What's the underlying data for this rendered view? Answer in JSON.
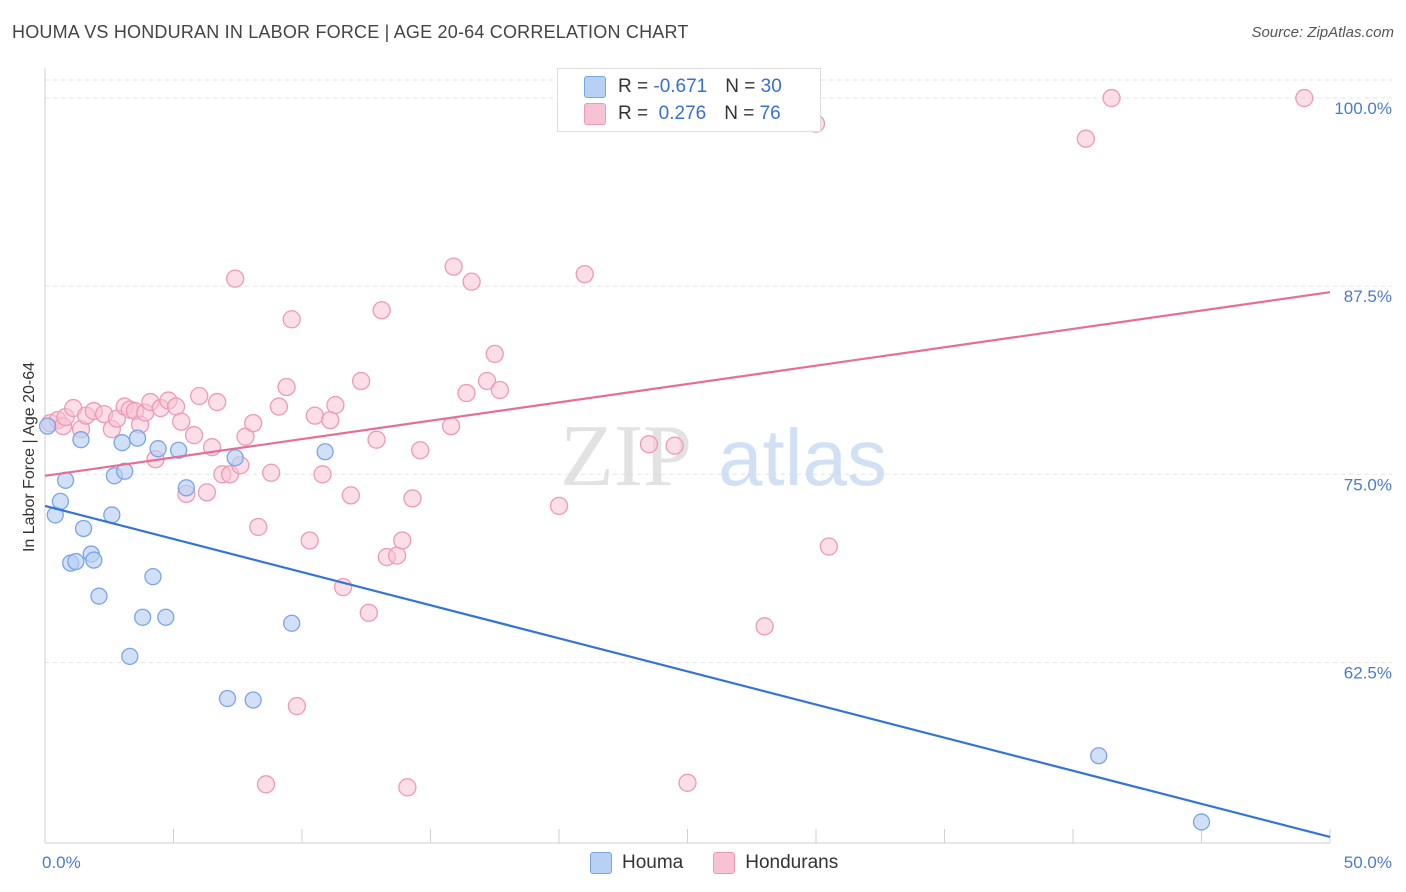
{
  "title": "HOUMA VS HONDURAN IN LABOR FORCE | AGE 20-64 CORRELATION CHART",
  "source": "Source: ZipAtlas.com",
  "watermark": {
    "zip": "ZIP",
    "atlas": "atlas"
  },
  "colors": {
    "houma_fill": "#b8d0f3",
    "houma_stroke": "#7aa5e4",
    "houma_line": "#3474d4",
    "honduran_fill": "#f7c3d4",
    "honduran_stroke": "#ee9ab6",
    "honduran_line": "#e46f96",
    "grid": "#e3e3e3",
    "axis_text": "#4a7bd0"
  },
  "legend": {
    "houma": {
      "r_label": "R = ",
      "r_value": "-0.671",
      "n_label": "N = ",
      "n_value": "30"
    },
    "honduran": {
      "r_label": "R = ",
      "r_value": " 0.276",
      "n_label": "N = ",
      "n_value": "76"
    }
  },
  "bottom_legend": {
    "houma": "Houma",
    "honduran": "Hondurans"
  },
  "chart_data": {
    "type": "scatter",
    "title": "HOUMA VS HONDURAN IN LABOR FORCE | AGE 20-64 CORRELATION CHART",
    "xlabel": "",
    "ylabel": "In Labor Force | Age 20-64",
    "xlim": [
      0,
      50
    ],
    "ylim": [
      50.5,
      101.2
    ],
    "x_tick_labels": [
      "0.0%",
      "50.0%"
    ],
    "y_ticks": [
      62.5,
      75.0,
      87.5,
      100.0
    ],
    "y_tick_labels": [
      "62.5%",
      "75.0%",
      "87.5%",
      "100.0%"
    ],
    "series": [
      {
        "name": "Houma",
        "points": [
          [
            0.1,
            78.2
          ],
          [
            0.4,
            72.3
          ],
          [
            0.6,
            73.2
          ],
          [
            0.8,
            74.6
          ],
          [
            1.0,
            69.1
          ],
          [
            1.2,
            69.2
          ],
          [
            1.4,
            77.3
          ],
          [
            1.5,
            71.4
          ],
          [
            1.8,
            69.7
          ],
          [
            1.9,
            69.3
          ],
          [
            2.1,
            66.9
          ],
          [
            2.6,
            72.3
          ],
          [
            2.7,
            74.9
          ],
          [
            3.0,
            77.1
          ],
          [
            3.1,
            75.2
          ],
          [
            3.3,
            62.9
          ],
          [
            3.6,
            77.4
          ],
          [
            3.8,
            65.5
          ],
          [
            4.2,
            68.2
          ],
          [
            4.4,
            76.7
          ],
          [
            4.7,
            65.5
          ],
          [
            5.2,
            76.6
          ],
          [
            5.5,
            74.1
          ],
          [
            7.1,
            60.1
          ],
          [
            7.4,
            76.1
          ],
          [
            8.1,
            60.0
          ],
          [
            9.6,
            65.1
          ],
          [
            10.9,
            76.5
          ],
          [
            41.0,
            56.3
          ],
          [
            45.0,
            51.9
          ]
        ],
        "trend": {
          "x": [
            0,
            50
          ],
          "y": [
            72.9,
            50.9
          ]
        }
      },
      {
        "name": "Hondurans",
        "points": [
          [
            0.2,
            78.4
          ],
          [
            0.5,
            78.6
          ],
          [
            0.7,
            78.2
          ],
          [
            0.8,
            78.8
          ],
          [
            1.1,
            79.4
          ],
          [
            1.4,
            78.0
          ],
          [
            1.6,
            78.9
          ],
          [
            1.9,
            79.2
          ],
          [
            2.3,
            79.0
          ],
          [
            2.6,
            78.0
          ],
          [
            2.8,
            78.7
          ],
          [
            3.1,
            79.5
          ],
          [
            3.3,
            79.3
          ],
          [
            3.5,
            79.2
          ],
          [
            3.7,
            78.3
          ],
          [
            3.9,
            79.1
          ],
          [
            4.1,
            79.8
          ],
          [
            4.3,
            76.0
          ],
          [
            4.5,
            79.4
          ],
          [
            4.8,
            79.9
          ],
          [
            5.1,
            79.5
          ],
          [
            5.3,
            78.5
          ],
          [
            5.5,
            73.7
          ],
          [
            5.8,
            77.6
          ],
          [
            6.0,
            80.2
          ],
          [
            6.3,
            73.8
          ],
          [
            6.5,
            76.8
          ],
          [
            6.7,
            79.8
          ],
          [
            6.9,
            75.0
          ],
          [
            7.2,
            75.0
          ],
          [
            7.4,
            88.0
          ],
          [
            7.6,
            75.6
          ],
          [
            7.8,
            77.5
          ],
          [
            8.1,
            78.4
          ],
          [
            8.3,
            71.5
          ],
          [
            8.6,
            54.4
          ],
          [
            8.8,
            75.1
          ],
          [
            9.1,
            79.5
          ],
          [
            9.4,
            80.8
          ],
          [
            9.6,
            85.3
          ],
          [
            9.8,
            59.6
          ],
          [
            10.3,
            70.6
          ],
          [
            10.5,
            78.9
          ],
          [
            10.8,
            75.0
          ],
          [
            11.1,
            78.6
          ],
          [
            11.3,
            79.6
          ],
          [
            11.6,
            67.5
          ],
          [
            11.9,
            73.6
          ],
          [
            12.3,
            81.2
          ],
          [
            12.6,
            65.8
          ],
          [
            12.9,
            77.3
          ],
          [
            13.1,
            85.9
          ],
          [
            13.3,
            69.5
          ],
          [
            13.7,
            69.6
          ],
          [
            13.9,
            70.6
          ],
          [
            14.1,
            54.2
          ],
          [
            14.3,
            73.4
          ],
          [
            14.6,
            76.6
          ],
          [
            15.8,
            78.2
          ],
          [
            15.9,
            88.8
          ],
          [
            16.4,
            80.4
          ],
          [
            16.6,
            87.8
          ],
          [
            17.2,
            81.2
          ],
          [
            17.5,
            83.0
          ],
          [
            17.7,
            80.6
          ],
          [
            20.0,
            72.9
          ],
          [
            21.0,
            88.3
          ],
          [
            23.5,
            77.0
          ],
          [
            24.5,
            76.9
          ],
          [
            25.0,
            54.5
          ],
          [
            28.0,
            64.9
          ],
          [
            30.0,
            98.3
          ],
          [
            30.5,
            70.2
          ],
          [
            40.5,
            97.3
          ],
          [
            41.5,
            100.0
          ],
          [
            49.0,
            100.0
          ]
        ],
        "trend": {
          "x": [
            0,
            50
          ],
          "y": [
            74.9,
            87.1
          ]
        }
      }
    ]
  }
}
